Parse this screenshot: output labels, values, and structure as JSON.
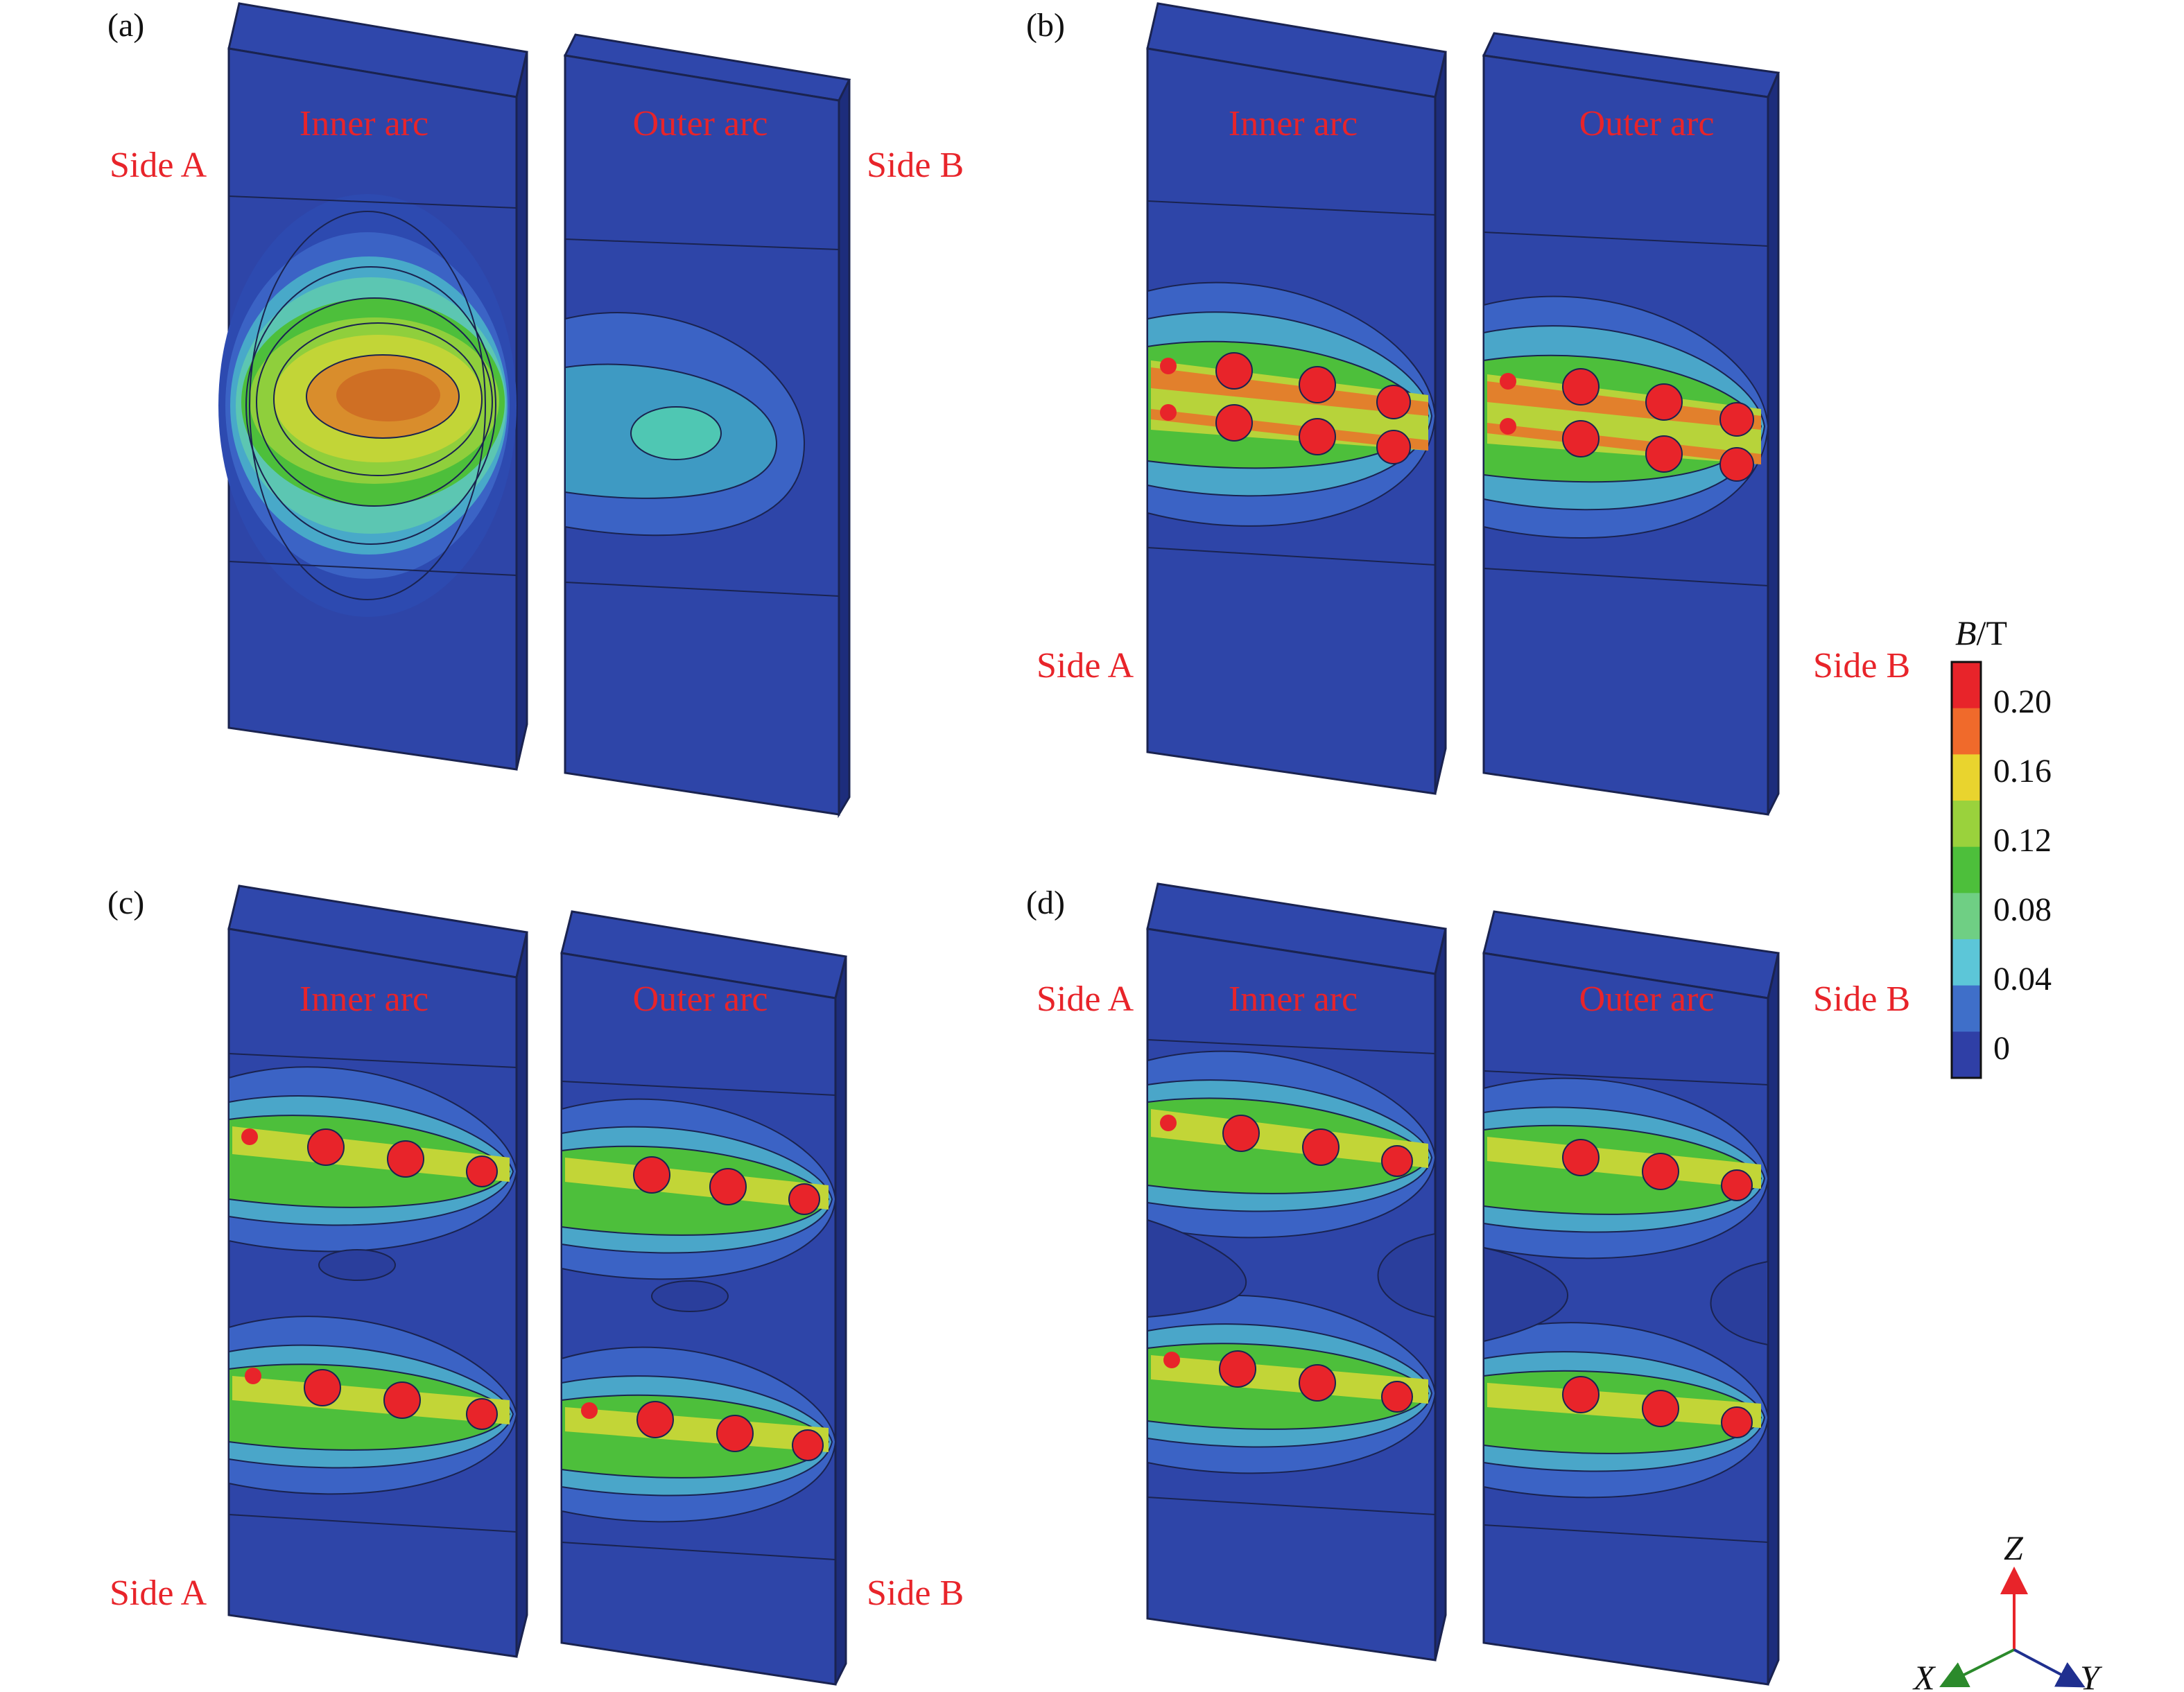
{
  "panels": [
    {
      "id": "a",
      "tag": "(a)",
      "mode": "single",
      "side_a": "Side A",
      "side_b": "Side B",
      "label_pos": "top",
      "inner_label": "Inner arc",
      "outer_label": "Outer arc"
    },
    {
      "id": "b",
      "tag": "(b)",
      "mode": "rotating-one",
      "side_a": "Side A",
      "side_b": "Side B",
      "label_pos": "bottom",
      "inner_label": "Inner arc",
      "outer_label": "Outer arc"
    },
    {
      "id": "c",
      "tag": "(c)",
      "mode": "rotating-two",
      "side_a": "Side A",
      "side_b": "Side B",
      "label_pos": "bottom",
      "inner_label": "Inner arc",
      "outer_label": "Outer arc"
    },
    {
      "id": "d",
      "tag": "(d)",
      "mode": "rotating-two-wide",
      "side_a": "Side A",
      "side_b": "Side B",
      "label_pos": "top",
      "inner_label": "Inner arc",
      "outer_label": "Outer arc"
    }
  ],
  "colorbar": {
    "title_symbol": "B",
    "title_unit": "/T",
    "ticks": [
      "0.20",
      "0.16",
      "0.12",
      "0.08",
      "0.04",
      "0"
    ],
    "colors": [
      "#e8242a",
      "#f06a2b",
      "#e9d42e",
      "#9ad23c",
      "#4dbf3b",
      "#6fcf84",
      "#5cc6d8",
      "#3f6fc9",
      "#2f3fa6"
    ]
  },
  "axes": {
    "z": "Z",
    "x": "X",
    "y": "Y"
  },
  "colors": {
    "label_red": "#e8242a",
    "slab_blue": "#2e45a8",
    "slab_dark": "#1d2d7c",
    "line": "#1a2350"
  }
}
